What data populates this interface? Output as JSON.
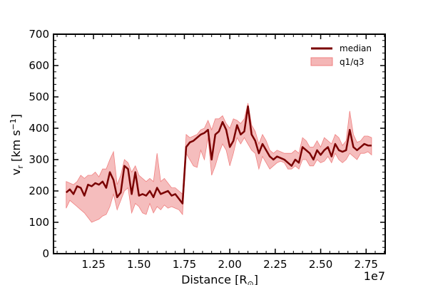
{
  "chart_data": {
    "type": "line",
    "title": "",
    "xlabel_prefix": "Distance [R",
    "xlabel_sub": "⊙",
    "xlabel_suffix": "]",
    "ylabel_main": "v",
    "ylabel_sub": "r",
    "ylabel_unit": " [km s",
    "ylabel_sup": "−1",
    "ylabel_close": "]",
    "x_offset_label": "1e7",
    "xlim": [
      1.03,
      2.855
    ],
    "ylim": [
      0,
      700
    ],
    "x_ticks": [
      1.25,
      1.5,
      1.75,
      2.0,
      2.25,
      2.5,
      2.75
    ],
    "x_tick_labels": [
      "1.25",
      "1.50",
      "1.75",
      "2.00",
      "2.25",
      "2.50",
      "2.75"
    ],
    "y_ticks": [
      0,
      100,
      200,
      300,
      400,
      500,
      600,
      700
    ],
    "y_tick_labels": [
      "0",
      "100",
      "200",
      "300",
      "400",
      "500",
      "600",
      "700"
    ],
    "grid": false,
    "legend_position": "top-right",
    "colors": {
      "median": "#7a0000",
      "band_fill": "#f4b6b6",
      "band_edge": "#f08080"
    },
    "series": [
      {
        "name": "median",
        "x": [
          1.1,
          1.12,
          1.14,
          1.16,
          1.18,
          1.2,
          1.22,
          1.24,
          1.26,
          1.28,
          1.3,
          1.32,
          1.34,
          1.36,
          1.38,
          1.4,
          1.42,
          1.44,
          1.46,
          1.48,
          1.5,
          1.52,
          1.54,
          1.56,
          1.58,
          1.6,
          1.62,
          1.64,
          1.66,
          1.68,
          1.7,
          1.72,
          1.74,
          1.76,
          1.78,
          1.8,
          1.82,
          1.84,
          1.86,
          1.88,
          1.9,
          1.92,
          1.94,
          1.96,
          1.98,
          2.0,
          2.02,
          2.04,
          2.06,
          2.08,
          2.1,
          2.12,
          2.14,
          2.16,
          2.18,
          2.2,
          2.22,
          2.24,
          2.26,
          2.28,
          2.3,
          2.32,
          2.34,
          2.36,
          2.38,
          2.4,
          2.42,
          2.44,
          2.46,
          2.48,
          2.5,
          2.52,
          2.54,
          2.56,
          2.58,
          2.6,
          2.62,
          2.64,
          2.66,
          2.68,
          2.7,
          2.72,
          2.74,
          2.76,
          2.78
        ],
        "values": [
          195,
          205,
          190,
          215,
          210,
          185,
          220,
          215,
          225,
          220,
          230,
          210,
          260,
          235,
          180,
          195,
          280,
          270,
          190,
          260,
          185,
          190,
          185,
          200,
          180,
          210,
          190,
          195,
          200,
          185,
          190,
          175,
          160,
          340,
          355,
          360,
          370,
          380,
          385,
          395,
          300,
          380,
          390,
          420,
          395,
          340,
          360,
          410,
          380,
          390,
          470,
          380,
          360,
          320,
          350,
          330,
          310,
          300,
          310,
          305,
          300,
          290,
          280,
          300,
          290,
          340,
          330,
          320,
          300,
          330,
          315,
          330,
          340,
          310,
          350,
          330,
          325,
          330,
          395,
          340,
          330,
          340,
          350,
          345,
          345
        ]
      },
      {
        "name": "q1/q3",
        "x": [
          1.1,
          1.12,
          1.14,
          1.16,
          1.18,
          1.2,
          1.22,
          1.24,
          1.26,
          1.28,
          1.3,
          1.32,
          1.34,
          1.36,
          1.38,
          1.4,
          1.42,
          1.44,
          1.46,
          1.48,
          1.5,
          1.52,
          1.54,
          1.56,
          1.58,
          1.6,
          1.62,
          1.64,
          1.66,
          1.68,
          1.7,
          1.72,
          1.74,
          1.76,
          1.78,
          1.8,
          1.82,
          1.84,
          1.86,
          1.88,
          1.9,
          1.92,
          1.94,
          1.96,
          1.98,
          2.0,
          2.02,
          2.04,
          2.06,
          2.08,
          2.1,
          2.12,
          2.14,
          2.16,
          2.18,
          2.2,
          2.22,
          2.24,
          2.26,
          2.28,
          2.3,
          2.32,
          2.34,
          2.36,
          2.38,
          2.4,
          2.42,
          2.44,
          2.46,
          2.48,
          2.5,
          2.52,
          2.54,
          2.56,
          2.58,
          2.6,
          2.62,
          2.64,
          2.66,
          2.68,
          2.7,
          2.72,
          2.74,
          2.76,
          2.78
        ],
        "q1": [
          145,
          170,
          160,
          150,
          140,
          130,
          115,
          100,
          105,
          110,
          120,
          125,
          150,
          190,
          140,
          170,
          200,
          210,
          130,
          160,
          150,
          130,
          125,
          160,
          130,
          150,
          140,
          155,
          145,
          150,
          145,
          140,
          125,
          320,
          300,
          280,
          275,
          330,
          300,
          370,
          250,
          280,
          320,
          350,
          330,
          280,
          320,
          370,
          350,
          370,
          350,
          330,
          320,
          270,
          310,
          290,
          270,
          280,
          290,
          295,
          290,
          270,
          270,
          280,
          270,
          300,
          300,
          280,
          280,
          300,
          290,
          295,
          310,
          290,
          320,
          300,
          290,
          300,
          320,
          310,
          300,
          320,
          320,
          325,
          315
        ],
        "q3": [
          230,
          225,
          220,
          230,
          250,
          240,
          250,
          250,
          260,
          245,
          270,
          270,
          300,
          325,
          220,
          250,
          300,
          290,
          260,
          280,
          250,
          240,
          230,
          240,
          230,
          320,
          230,
          240,
          225,
          210,
          210,
          200,
          190,
          380,
          370,
          375,
          380,
          395,
          400,
          425,
          395,
          430,
          430,
          440,
          415,
          400,
          430,
          425,
          415,
          430,
          480,
          410,
          390,
          350,
          380,
          360,
          330,
          320,
          330,
          325,
          320,
          320,
          320,
          330,
          320,
          370,
          360,
          340,
          340,
          360,
          340,
          370,
          360,
          350,
          380,
          370,
          345,
          360,
          455,
          380,
          355,
          360,
          375,
          375,
          370
        ]
      }
    ]
  }
}
